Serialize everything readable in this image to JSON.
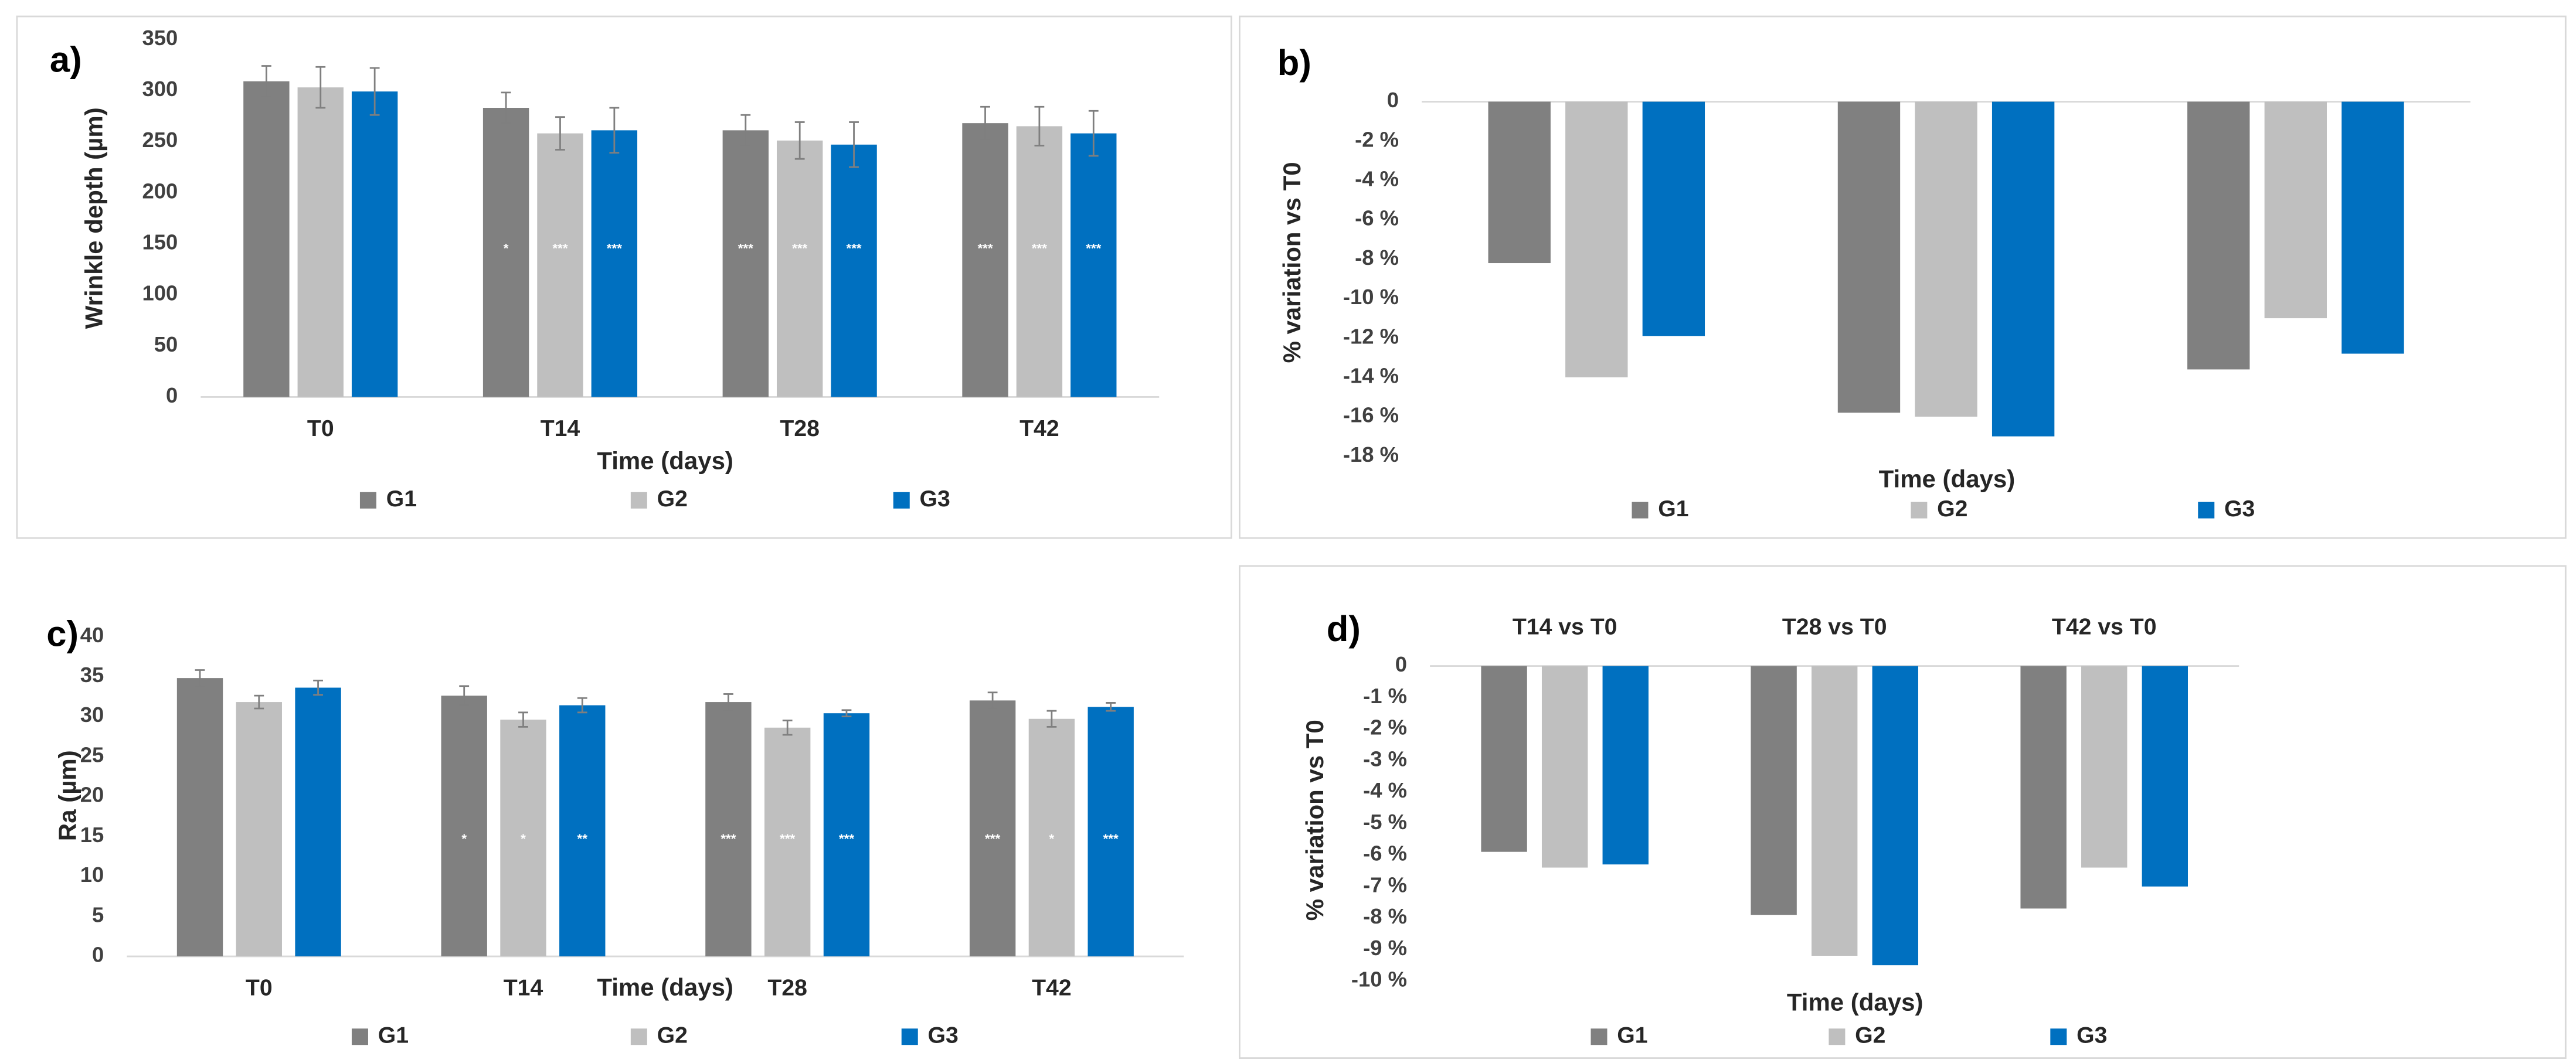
{
  "chart_data": [
    {
      "type": "bar",
      "label": "a)",
      "x_label": "Time (days)",
      "y_label": "Wrinkle depth (µm)",
      "categories": [
        "T0",
        "T14",
        "T28",
        "T42"
      ],
      "ylim": [
        0,
        350
      ],
      "yticks": [
        0,
        50,
        100,
        150,
        200,
        250,
        300,
        350
      ],
      "series": [
        {
          "name": "G1",
          "color": "#808080",
          "values": [
            309,
            283,
            261,
            268
          ],
          "errors": [
            15,
            15,
            15,
            16
          ],
          "annotations": [
            null,
            "*",
            "***",
            "***"
          ]
        },
        {
          "name": "G2",
          "color": "#bfbfbf",
          "values": [
            303,
            258,
            251,
            265
          ],
          "errors": [
            20,
            16,
            18,
            19
          ],
          "annotations": [
            null,
            "***",
            "***",
            "***"
          ]
        },
        {
          "name": "G3",
          "color": "#0070c0",
          "values": [
            299,
            261,
            247,
            258
          ],
          "errors": [
            23,
            22,
            22,
            22
          ],
          "annotations": [
            null,
            "***",
            "***",
            "***"
          ]
        }
      ]
    },
    {
      "type": "bar",
      "label": "b)",
      "x_label": "Time (days)",
      "y_label": "% variation vs T0",
      "categories": [
        null,
        null,
        null
      ],
      "ylim": [
        -18,
        0
      ],
      "yticks": [
        0,
        {
          "value": -2,
          "label": "-2 %"
        },
        {
          "value": -4,
          "label": "-4 %"
        },
        {
          "value": -6,
          "label": "-6 %"
        },
        {
          "value": -8,
          "label": "-8 %"
        },
        {
          "value": -10,
          "label": "-10 %"
        },
        {
          "value": -12,
          "label": "-12 %"
        },
        {
          "value": -14,
          "label": "-14 %"
        },
        {
          "value": -16,
          "label": "-16 %"
        },
        {
          "value": -18,
          "label": "-18 %"
        }
      ],
      "series": [
        {
          "name": "G1",
          "color": "#808080",
          "values": [
            -8.2,
            -15.8,
            -13.6
          ]
        },
        {
          "name": "G2",
          "color": "#bfbfbf",
          "values": [
            -14,
            -16,
            -11
          ]
        },
        {
          "name": "G3",
          "color": "#0070c0",
          "values": [
            -11.9,
            -17,
            -12.8
          ]
        }
      ]
    },
    {
      "type": "bar",
      "label": "c)",
      "x_label": "Time (days)",
      "y_label": "Ra (µm)",
      "categories": [
        "T0",
        "T14",
        "T28",
        "T42"
      ],
      "ylim": [
        0,
        40
      ],
      "yticks": [
        0,
        5,
        10,
        15,
        20,
        25,
        30,
        35,
        40
      ],
      "series": [
        {
          "name": "G1",
          "color": "#808080",
          "values": [
            34.8,
            32.6,
            31.8,
            32.0
          ],
          "errors": [
            1.0,
            1.2,
            1.0,
            1.0
          ],
          "annotations": [
            null,
            "*",
            "***",
            "***"
          ]
        },
        {
          "name": "G2",
          "color": "#bfbfbf",
          "values": [
            31.8,
            29.6,
            28.6,
            29.7
          ],
          "errors": [
            0.8,
            0.9,
            0.9,
            1.0
          ],
          "annotations": [
            null,
            "*",
            "***",
            "*"
          ]
        },
        {
          "name": "G3",
          "color": "#0070c0",
          "values": [
            33.6,
            31.4,
            30.4,
            31.2
          ],
          "errors": [
            0.9,
            0.9,
            0.4,
            0.5
          ],
          "annotations": [
            null,
            "**",
            "***",
            "***"
          ]
        }
      ]
    },
    {
      "type": "bar",
      "label": "d)",
      "x_label": "Time (days)",
      "y_label": "% variation vs T0",
      "categories": [
        "T14 vs T0",
        "T28 vs T0",
        "T42 vs T0"
      ],
      "ylim": [
        -10,
        0
      ],
      "yticks": [
        0,
        {
          "value": -1,
          "label": "-1 %"
        },
        {
          "value": -2,
          "label": "-2 %"
        },
        {
          "value": -3,
          "label": "-3 %"
        },
        {
          "value": -4,
          "label": "-4 %"
        },
        {
          "value": -5,
          "label": "-5 %"
        },
        {
          "value": -6,
          "label": "-6 %"
        },
        {
          "value": -7,
          "label": "-7 %"
        },
        {
          "value": -8,
          "label": "-8 %"
        },
        {
          "value": -9,
          "label": "-9 %"
        },
        {
          "value": -10,
          "label": "-10 %"
        }
      ],
      "series": [
        {
          "name": "G1",
          "color": "#808080",
          "values": [
            -5.9,
            -7.9,
            -7.7
          ]
        },
        {
          "name": "G2",
          "color": "#bfbfbf",
          "values": [
            -6.4,
            -9.2,
            -6.4
          ]
        },
        {
          "name": "G3",
          "color": "#0070c0",
          "values": [
            -6.3,
            -9.5,
            -7.0
          ]
        }
      ]
    }
  ]
}
